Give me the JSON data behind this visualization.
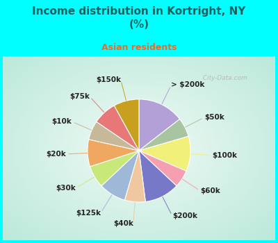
{
  "title": "Income distribution in Kortright, NY\n(%)",
  "subtitle": "Asian residents",
  "title_color": "#1a6060",
  "subtitle_color": "#e07030",
  "bg_cyan": "#00ffff",
  "bg_chart_edge": "#b8e8d8",
  "bg_chart_center": "#f0faf5",
  "labels": [
    "> $200k",
    "$50k",
    "$100k",
    "$60k",
    "$200k",
    "$40k",
    "$125k",
    "$30k",
    "$20k",
    "$10k",
    "$75k",
    "$150k"
  ],
  "values": [
    14.5,
    6.0,
    11.0,
    5.5,
    11.0,
    6.5,
    8.5,
    7.0,
    8.5,
    6.0,
    7.5,
    8.0
  ],
  "colors": [
    "#b3a0d6",
    "#a8c4a0",
    "#f0f07a",
    "#f4a0b0",
    "#7878c8",
    "#f0c8a0",
    "#a0b8d8",
    "#c8e87a",
    "#f0a860",
    "#c8b89a",
    "#e87878",
    "#c8a020"
  ],
  "label_fontsize": 7.5,
  "watermark": "  City-Data.com",
  "title_fontsize": 11,
  "subtitle_fontsize": 9
}
